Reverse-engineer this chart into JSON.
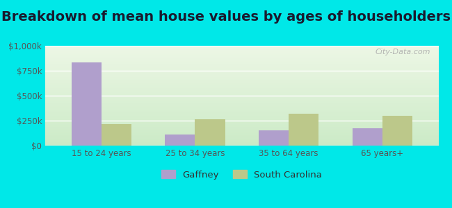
{
  "title": "Breakdown of mean house values by ages of householders",
  "categories": [
    "15 to 24 years",
    "25 to 34 years",
    "35 to 64 years",
    "65 years+"
  ],
  "gaffney_values": [
    830000,
    110000,
    155000,
    175000
  ],
  "sc_values": [
    215000,
    265000,
    320000,
    300000
  ],
  "gaffney_color": "#b09fcc",
  "sc_color": "#bcc88a",
  "ylim": [
    0,
    1000000
  ],
  "yticks": [
    0,
    250000,
    500000,
    750000,
    1000000
  ],
  "ytick_labels": [
    "$0",
    "$250k",
    "$500k",
    "$750k",
    "$1,000k"
  ],
  "legend_labels": [
    "Gaffney",
    "South Carolina"
  ],
  "bg_outer": "#00e8e8",
  "watermark": "City-Data.com",
  "title_fontsize": 14,
  "bar_width": 0.32
}
